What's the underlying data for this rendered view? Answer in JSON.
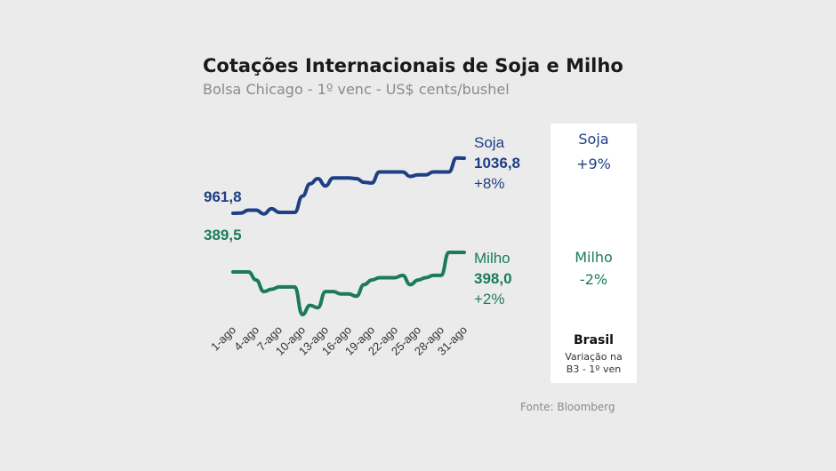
{
  "header": {
    "title": "Cotações Internacionais de Soja e Milho",
    "subtitle": "Bolsa Chicago - 1º venc - US$ cents/bushel"
  },
  "colors": {
    "soja": "#1d3f86",
    "milho": "#1b7a5e"
  },
  "chart_data": {
    "type": "line",
    "title": "Cotações Internacionais de Soja e Milho",
    "subtitle": "Bolsa Chicago - 1º venc - US$ cents/bushel",
    "xlabel": "",
    "ylabel": "",
    "grid": false,
    "legend": "none",
    "x": [
      "1-ago",
      "2-ago",
      "3-ago",
      "4-ago",
      "5-ago",
      "6-ago",
      "7-ago",
      "8-ago",
      "9-ago",
      "10-ago",
      "11-ago",
      "12-ago",
      "13-ago",
      "14-ago",
      "15-ago",
      "16-ago",
      "17-ago",
      "18-ago",
      "19-ago",
      "20-ago",
      "21-ago",
      "22-ago",
      "23-ago",
      "24-ago",
      "25-ago",
      "26-ago",
      "27-ago",
      "28-ago",
      "29-ago",
      "30-ago",
      "31-ago"
    ],
    "tick_labels": [
      "1-ago",
      "4-ago",
      "7-ago",
      "10-ago",
      "13-ago",
      "16-ago",
      "19-ago",
      "22-ago",
      "25-ago",
      "28-ago",
      "31-ago"
    ],
    "series": [
      {
        "name": "Soja",
        "start_label": "961,8",
        "end_value_label": "1036,8",
        "end_pct_label": "+8%",
        "values": [
          961.8,
          962,
          966,
          966,
          961,
          968,
          963,
          963,
          963,
          985,
          1002,
          1009,
          999,
          1010,
          1010,
          1010,
          1009,
          1004,
          1003,
          1018,
          1018,
          1018,
          1018,
          1012,
          1014,
          1014,
          1018,
          1018,
          1018,
          1037,
          1036.8
        ]
      },
      {
        "name": "Milho",
        "start_label": "389,5",
        "end_value_label": "398,0",
        "end_pct_label": "+2%",
        "values": [
          389.5,
          389.5,
          389.5,
          386,
          381,
          382,
          383,
          383,
          383,
          371,
          375,
          374,
          381,
          381,
          380,
          380,
          379,
          384,
          386,
          387,
          387,
          387,
          388,
          384,
          386,
          387,
          388,
          388,
          398,
          398,
          398
        ]
      }
    ]
  },
  "side_panel": {
    "soja_name": "Soja",
    "soja_pct": "+9%",
    "milho_name": "Milho",
    "milho_pct": "-2%",
    "footer_title": "Brasil",
    "footer_line1": "Variação na",
    "footer_line2": "B3 - 1º ven"
  },
  "source": "Fonte: Bloomberg"
}
